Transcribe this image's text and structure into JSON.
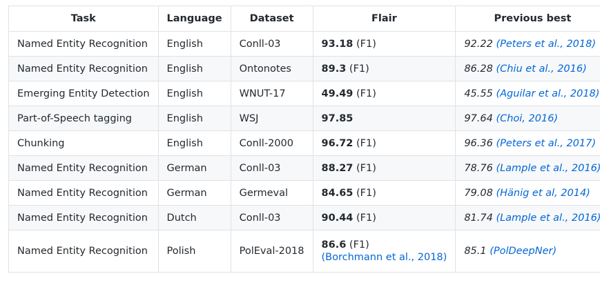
{
  "headers": [
    "Task",
    "Language",
    "Dataset",
    "Flair",
    "Previous best"
  ],
  "rows": [
    {
      "task": "Named Entity Recognition",
      "language": "English",
      "dataset": "Conll-03",
      "flair_score": "93.18",
      "flair_metric": "(F1)",
      "prev_score": "92.22",
      "prev_cite": "(Peters et al., 2018)"
    },
    {
      "task": "Named Entity Recognition",
      "language": "English",
      "dataset": "Ontonotes",
      "flair_score": "89.3",
      "flair_metric": "(F1)",
      "prev_score": "86.28",
      "prev_cite": "(Chiu et al., 2016)"
    },
    {
      "task": "Emerging Entity Detection",
      "language": "English",
      "dataset": "WNUT-17",
      "flair_score": "49.49",
      "flair_metric": "(F1)",
      "prev_score": "45.55",
      "prev_cite": "(Aguilar et al., 2018)"
    },
    {
      "task": "Part-of-Speech tagging",
      "language": "English",
      "dataset": "WSJ",
      "flair_score": "97.85",
      "flair_metric": "",
      "prev_score": "97.64",
      "prev_cite": "(Choi, 2016)"
    },
    {
      "task": "Chunking",
      "language": "English",
      "dataset": "Conll-2000",
      "flair_score": "96.72",
      "flair_metric": "(F1)",
      "prev_score": "96.36",
      "prev_cite": "(Peters et al., 2017)"
    },
    {
      "task": "Named Entity Recognition",
      "language": "German",
      "dataset": "Conll-03",
      "flair_score": "88.27",
      "flair_metric": "(F1)",
      "prev_score": "78.76",
      "prev_cite": "(Lample et al., 2016)"
    },
    {
      "task": "Named Entity Recognition",
      "language": "German",
      "dataset": "Germeval",
      "flair_score": "84.65",
      "flair_metric": "(F1)",
      "prev_score": "79.08",
      "prev_cite": "(Hänig et al, 2014)"
    },
    {
      "task": "Named Entity Recognition",
      "language": "Dutch",
      "dataset": "Conll-03",
      "flair_score": "90.44",
      "flair_metric": "(F1)",
      "prev_score": "81.74",
      "prev_cite": "(Lample et al., 2016)"
    },
    {
      "task": "Named Entity Recognition",
      "language": "Polish",
      "dataset": "PolEval-2018",
      "flair_score": "86.6",
      "flair_metric": "(F1)",
      "flair_cite": "(Borchmann et al., 2018)",
      "prev_score": "85.1",
      "prev_cite": "(PolDeepNer)"
    }
  ]
}
